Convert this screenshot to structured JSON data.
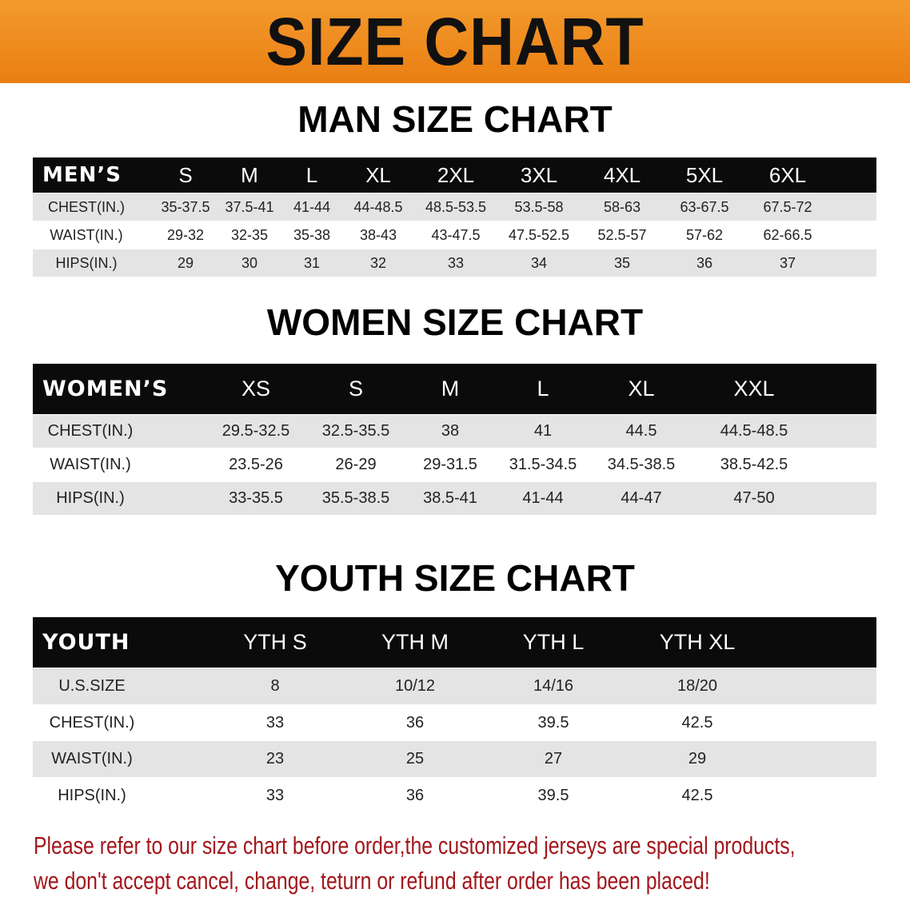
{
  "banner_title": "SIZE CHART",
  "men": {
    "title": "MAN SIZE CHART",
    "header": [
      "MEN’S",
      "S",
      "M",
      "L",
      "XL",
      "2XL",
      "3XL",
      "4XL",
      "5XL",
      "6XL"
    ],
    "rows": [
      [
        "CHEST(IN.)",
        "35-37.5",
        "37.5-41",
        "41-44",
        "44-48.5",
        "48.5-53.5",
        "53.5-58",
        "58-63",
        "63-67.5",
        "67.5-72"
      ],
      [
        "WAIST(IN.)",
        "29-32",
        "32-35",
        "35-38",
        "38-43",
        "43-47.5",
        "47.5-52.5",
        "52.5-57",
        "57-62",
        "62-66.5"
      ],
      [
        "HIPS(IN.)",
        "29",
        "30",
        "31",
        "32",
        "33",
        "34",
        "35",
        "36",
        "37"
      ]
    ]
  },
  "women": {
    "title": "WOMEN SIZE CHART",
    "header": [
      "WOMEN’S",
      "XS",
      "S",
      "M",
      "L",
      "XL",
      "XXL"
    ],
    "rows": [
      [
        "CHEST(IN.)",
        "29.5-32.5",
        "32.5-35.5",
        "38",
        "41",
        "44.5",
        "44.5-48.5"
      ],
      [
        "WAIST(IN.)",
        "23.5-26",
        "26-29",
        "29-31.5",
        "31.5-34.5",
        "34.5-38.5",
        "38.5-42.5"
      ],
      [
        "HIPS(IN.)",
        "33-35.5",
        "35.5-38.5",
        "38.5-41",
        "41-44",
        "44-47",
        "47-50"
      ]
    ]
  },
  "youth": {
    "title": "YOUTH SIZE CHART",
    "header": [
      "YOUTH",
      "YTH S",
      "YTH M",
      "YTH L",
      "YTH XL"
    ],
    "rows": [
      [
        "U.S.SIZE",
        "8",
        "10/12",
        "14/16",
        "18/20"
      ],
      [
        "CHEST(IN.)",
        "33",
        "36",
        "39.5",
        "42.5"
      ],
      [
        "WAIST(IN.)",
        "23",
        "25",
        "27",
        "29"
      ],
      [
        "HIPS(IN.)",
        "33",
        "36",
        "39.5",
        "42.5"
      ]
    ]
  },
  "note": {
    "line1": "Please refer to our size chart before order,the customized jerseys are special products,",
    "line2": "we don't accept cancel, change, teturn or refund after order has been placed!"
  },
  "colors": {
    "banner": "#ee8a1e",
    "header_bg": "#0b0b0b",
    "row_alt": "#e4e4e4",
    "note": "#a3161b"
  }
}
